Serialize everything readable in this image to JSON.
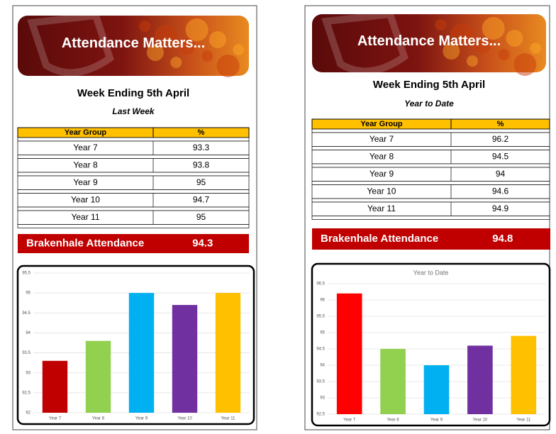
{
  "panels": [
    {
      "banner": "Attendance Matters...",
      "title": "Week Ending 5th April",
      "subtitle": "Last Week",
      "table": {
        "header": [
          "Year Group",
          "%"
        ],
        "rows": [
          [
            "Year 7",
            93.3
          ],
          [
            "Year 8",
            93.8
          ],
          [
            "Year 9",
            95
          ],
          [
            "Year 10",
            94.7
          ],
          [
            "Year 11",
            95
          ]
        ]
      },
      "total": {
        "label": "Brakenhale Attendance",
        "value": 94.3
      }
    },
    {
      "banner": "Attendance Matters...",
      "title": "Week Ending 5th April",
      "subtitle": "Year to Date",
      "table": {
        "header": [
          "Year Group",
          "%"
        ],
        "rows": [
          [
            "Year 7",
            96.2
          ],
          [
            "Year 8",
            94.5
          ],
          [
            "Year 9",
            94
          ],
          [
            "Year 10",
            94.6
          ],
          [
            "Year 11",
            94.9
          ]
        ]
      },
      "total": {
        "label": "Brakenhale Attendance",
        "value": 94.8
      }
    }
  ],
  "chart_data": [
    {
      "type": "bar",
      "categories": [
        "Year 7",
        "Year 8",
        "Year 9",
        "Year 10",
        "Year 11"
      ],
      "values": [
        93.3,
        93.8,
        95,
        94.7,
        95
      ],
      "colors": [
        "#c00000",
        "#92d050",
        "#00b0f0",
        "#7030a0",
        "#ffc000"
      ],
      "ylim": [
        92,
        95.5
      ],
      "yticks": [
        92,
        92.5,
        93,
        93.5,
        94,
        94.5,
        95,
        95.5
      ],
      "grid": true
    },
    {
      "type": "bar",
      "title": "Year to Date",
      "categories": [
        "Year 7",
        "Year 8",
        "Year 9",
        "Year 10",
        "Year 11"
      ],
      "values": [
        96.2,
        94.5,
        94,
        94.6,
        94.9
      ],
      "colors": [
        "#ff0000",
        "#92d050",
        "#00b0f0",
        "#7030a0",
        "#ffc000"
      ],
      "ylim": [
        92.5,
        96.5
      ],
      "yticks": [
        92.5,
        93,
        93.5,
        94,
        94.5,
        95,
        95.5,
        96,
        96.5
      ],
      "grid": true
    }
  ]
}
